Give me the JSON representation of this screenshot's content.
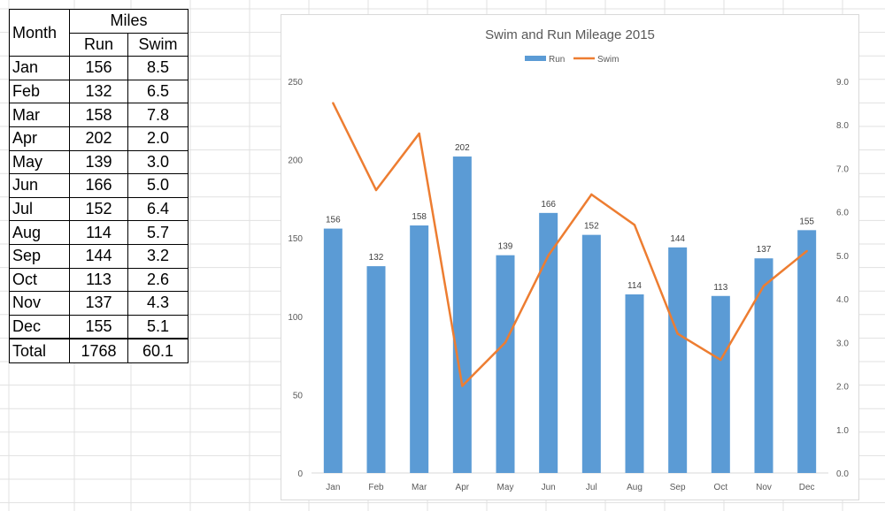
{
  "table": {
    "header": {
      "month": "Month",
      "miles": "Miles",
      "run": "Run",
      "swim": "Swim"
    },
    "rows": [
      {
        "month": "Jan",
        "run": "156",
        "swim": "8.5"
      },
      {
        "month": "Feb",
        "run": "132",
        "swim": "6.5"
      },
      {
        "month": "Mar",
        "run": "158",
        "swim": "7.8"
      },
      {
        "month": "Apr",
        "run": "202",
        "swim": "2.0"
      },
      {
        "month": "May",
        "run": "139",
        "swim": "3.0"
      },
      {
        "month": "Jun",
        "run": "166",
        "swim": "5.0"
      },
      {
        "month": "Jul",
        "run": "152",
        "swim": "6.4"
      },
      {
        "month": "Aug",
        "run": "114",
        "swim": "5.7"
      },
      {
        "month": "Sep",
        "run": "144",
        "swim": "3.2"
      },
      {
        "month": "Oct",
        "run": "113",
        "swim": "2.6"
      },
      {
        "month": "Nov",
        "run": "137",
        "swim": "4.3"
      },
      {
        "month": "Dec",
        "run": "155",
        "swim": "5.1"
      }
    ],
    "total": {
      "label": "Total",
      "run": "1768",
      "swim": "60.1"
    }
  },
  "chart_data": {
    "type": "bar",
    "title": "Swim and Run Mileage 2015",
    "categories": [
      "Jan",
      "Feb",
      "Mar",
      "Apr",
      "May",
      "Jun",
      "Jul",
      "Aug",
      "Sep",
      "Oct",
      "Nov",
      "Dec"
    ],
    "series": [
      {
        "name": "Run",
        "type": "bar",
        "axis": "left",
        "color": "#5b9bd5",
        "values": [
          156,
          132,
          158,
          202,
          139,
          166,
          152,
          114,
          144,
          113,
          137,
          155
        ],
        "data_labels": true
      },
      {
        "name": "Swim",
        "type": "line",
        "axis": "right",
        "color": "#ed7d31",
        "values": [
          8.5,
          6.5,
          7.8,
          2.0,
          3.0,
          5.0,
          6.4,
          5.7,
          3.2,
          2.6,
          4.3,
          5.1
        ],
        "data_labels": false
      }
    ],
    "y_left": {
      "ylim": [
        0,
        250
      ],
      "ticks": [
        "0",
        "50",
        "100",
        "150",
        "200",
        "250"
      ]
    },
    "y_right": {
      "ylim": [
        0,
        9
      ],
      "ticks": [
        "0.0",
        "1.0",
        "2.0",
        "3.0",
        "4.0",
        "5.0",
        "6.0",
        "7.0",
        "8.0",
        "9.0"
      ]
    },
    "legend_position": "top",
    "grid": false
  }
}
